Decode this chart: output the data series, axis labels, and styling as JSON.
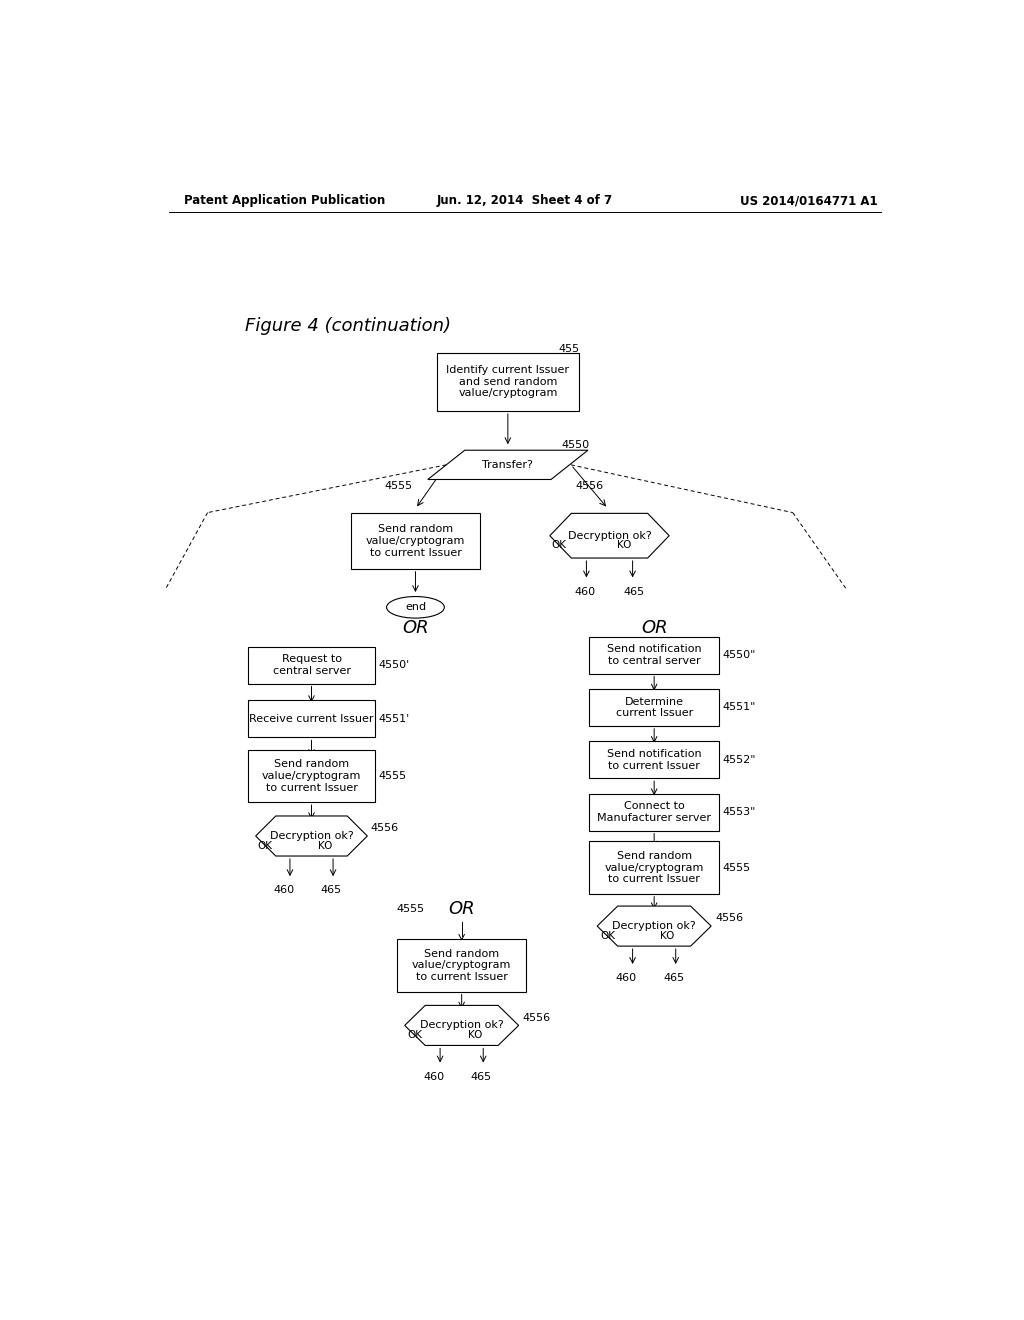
{
  "bg_color": "#ffffff",
  "header_left": "Patent Application Publication",
  "header_center": "Jun. 12, 2014  Sheet 4 of 7",
  "header_right": "US 2014/0164771 A1",
  "figure_label": "Figure 4 (continuation)"
}
